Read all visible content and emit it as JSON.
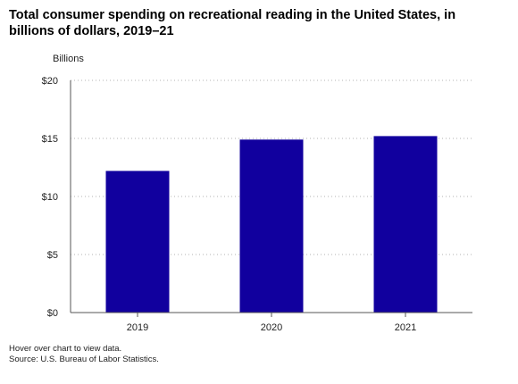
{
  "title": "Total consumer spending on recreational reading in the United States, in billions of dollars, 2019–21",
  "notes": {
    "line1": "Hover over chart to view data.",
    "line2": "Source: U.S. Bureau of Labor Statistics."
  },
  "colors": {
    "bar": "#11009e",
    "grid": "#b3b3b3",
    "axis": "#555555"
  },
  "chart_data": {
    "type": "bar",
    "title": "Total consumer spending on recreational reading in the United States, in billions of dollars, 2019–21",
    "ylabel": "Billions",
    "xlabel": "",
    "categories": [
      "2019",
      "2020",
      "2021"
    ],
    "values": [
      12.2,
      14.9,
      15.2
    ],
    "ylim": [
      0,
      20
    ],
    "yticks": [
      0,
      5,
      10,
      15,
      20
    ],
    "ytick_labels": [
      "$0",
      "$5",
      "$10",
      "$15",
      "$20"
    ],
    "grid": "horizontal dotted",
    "legend": "none"
  }
}
